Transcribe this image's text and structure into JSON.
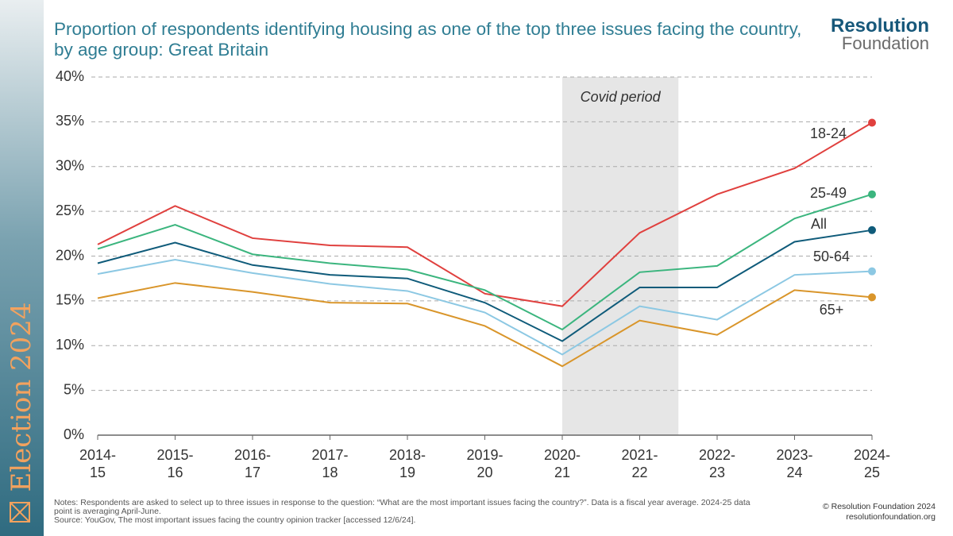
{
  "chart_data": {
    "type": "line",
    "title": "Proportion of respondents identifying housing as one of the top three issues facing the country, by age group: Great Britain",
    "categories": [
      [
        "2014-",
        "15"
      ],
      [
        "2015-",
        "16"
      ],
      [
        "2016-",
        "17"
      ],
      [
        "2017-",
        "18"
      ],
      [
        "2018-",
        "19"
      ],
      [
        "2019-",
        "20"
      ],
      [
        "2020-",
        "21"
      ],
      [
        "2021-",
        "22"
      ],
      [
        "2022-",
        "23"
      ],
      [
        "2023-",
        "24"
      ],
      [
        "2024-",
        "25"
      ]
    ],
    "series": [
      {
        "name": "18-24",
        "color": "#e0403e",
        "values": [
          21.3,
          25.6,
          22.0,
          21.2,
          21.0,
          15.8,
          14.4,
          22.6,
          26.9,
          29.8,
          34.9
        ]
      },
      {
        "name": "25-49",
        "color": "#3bb57e",
        "values": [
          20.8,
          23.5,
          20.2,
          19.2,
          18.5,
          16.2,
          11.8,
          18.2,
          18.9,
          24.2,
          26.9
        ]
      },
      {
        "name": "All",
        "color": "#0f5b7a",
        "values": [
          19.2,
          21.5,
          19.0,
          17.9,
          17.5,
          14.8,
          10.5,
          16.5,
          16.5,
          21.6,
          22.9
        ]
      },
      {
        "name": "50-64",
        "color": "#8cc8e3",
        "values": [
          18.0,
          19.6,
          18.1,
          16.9,
          16.1,
          13.7,
          9.0,
          14.4,
          12.9,
          17.9,
          18.3
        ]
      },
      {
        "name": "65+",
        "color": "#d9952a",
        "values": [
          15.3,
          17.0,
          16.0,
          14.8,
          14.7,
          12.2,
          7.7,
          12.8,
          11.2,
          16.2,
          15.4
        ]
      }
    ],
    "ylim": [
      0,
      40
    ],
    "yticks": [
      {
        "value": 0,
        "label": "0%"
      },
      {
        "value": 5,
        "label": "5%"
      },
      {
        "value": 10,
        "label": "10%"
      },
      {
        "value": 15,
        "label": "15%"
      },
      {
        "value": 20,
        "label": "20%"
      },
      {
        "value": 25,
        "label": "25%"
      },
      {
        "value": 30,
        "label": "30%"
      },
      {
        "value": 35,
        "label": "35%"
      },
      {
        "value": 40,
        "label": "40%"
      }
    ],
    "grid": true,
    "annotation": "Covid period"
  },
  "branding": {
    "logo_top": "Resolution",
    "logo_bottom": "Foundation",
    "sidebar": "Election 2024",
    "copyright": "© Resolution Foundation 2024",
    "url": "resolutionfoundation.org"
  },
  "footer": {
    "notes": "Notes: Respondents are asked to select up to three issues in response to the question: “What are the most important issues facing the country?”. Data is a fiscal year average. 2024-25 data point is averaging April-June.",
    "source": "Source: YouGov, The most important issues facing the country opinion tracker [accessed 12/6/24]."
  }
}
